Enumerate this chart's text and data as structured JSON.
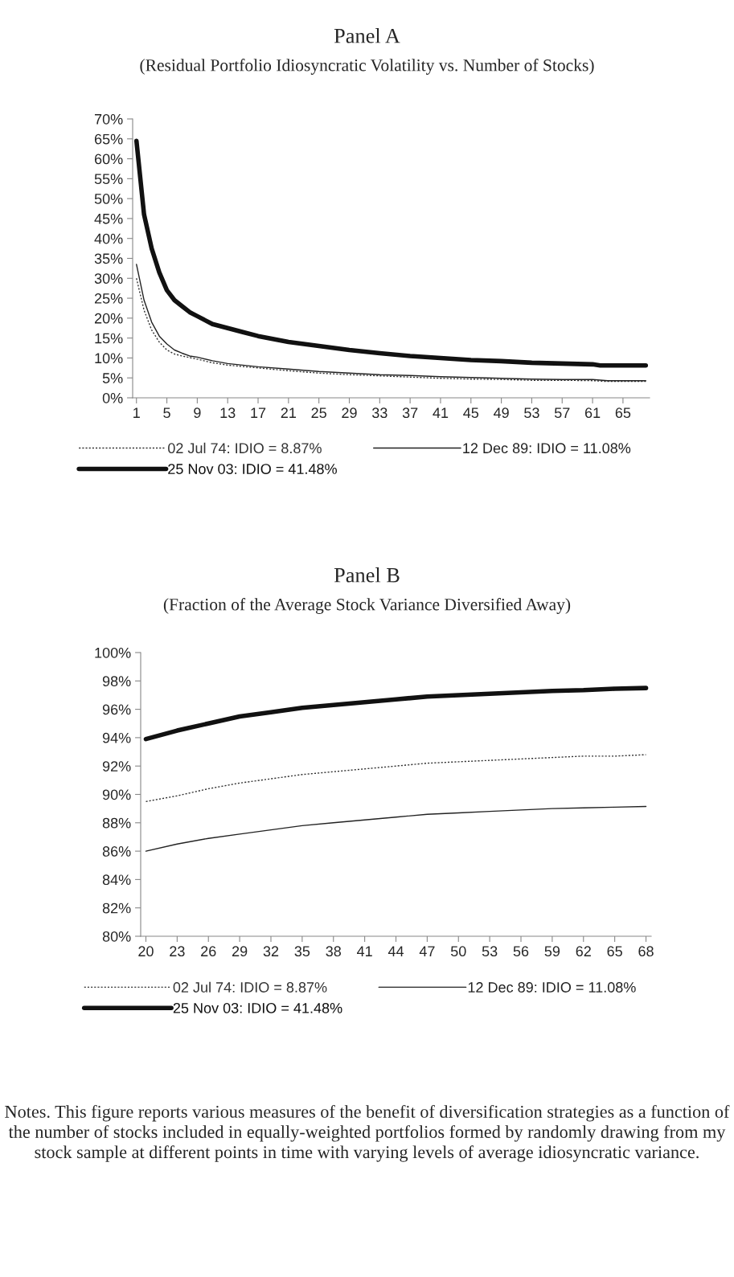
{
  "chart_data": [
    {
      "type": "line",
      "title": "Panel A",
      "subtitle": "(Residual Portfolio Idiosyncratic Volatility vs. Number of Stocks)",
      "xlim": [
        0.5,
        68.5
      ],
      "xticks": [
        1,
        5,
        9,
        13,
        17,
        21,
        25,
        29,
        33,
        37,
        41,
        45,
        49,
        53,
        57,
        61,
        65
      ],
      "ylim": [
        0,
        70
      ],
      "yticks": [
        {
          "value": 0,
          "label": "0%"
        },
        {
          "value": 5,
          "label": "5%"
        },
        {
          "value": 10,
          "label": "10%"
        },
        {
          "value": 15,
          "label": "15%"
        },
        {
          "value": 20,
          "label": "20%"
        },
        {
          "value": 25,
          "label": "25%"
        },
        {
          "value": 30,
          "label": "30%"
        },
        {
          "value": 35,
          "label": "35%"
        },
        {
          "value": 40,
          "label": "40%"
        },
        {
          "value": 45,
          "label": "45%"
        },
        {
          "value": 50,
          "label": "50%"
        },
        {
          "value": 55,
          "label": "55%"
        },
        {
          "value": 60,
          "label": "60%"
        },
        {
          "value": 65,
          "label": "65%"
        },
        {
          "value": 70,
          "label": "70%"
        }
      ],
      "grid": false,
      "legend": "bottom",
      "series": [
        {
          "name": "02 Jul 74: IDIO = 8.87%",
          "color": "#333333",
          "line_style": "dotted",
          "x": [
            1,
            2,
            3,
            4,
            5,
            6,
            7,
            9,
            11,
            13,
            17,
            21,
            25,
            29,
            33,
            37,
            41,
            45,
            49,
            53,
            57,
            61,
            63,
            68
          ],
          "values": [
            30,
            22,
            17,
            14,
            12,
            11,
            10.5,
            9.7,
            8.8,
            8.2,
            7.5,
            6.8,
            6.2,
            5.8,
            5.5,
            5.2,
            4.9,
            4.7,
            4.6,
            4.4,
            4.4,
            4.3,
            4.1,
            4.1
          ]
        },
        {
          "name": "12 Dec 89: IDIO = 11.08%",
          "color": "#222222",
          "line_style": "solid",
          "x": [
            1,
            2,
            3,
            4,
            5,
            6,
            7,
            8,
            9,
            11,
            13,
            17,
            21,
            25,
            29,
            33,
            37,
            41,
            45,
            49,
            53,
            57,
            61,
            63,
            68
          ],
          "values": [
            33.5,
            24.5,
            19,
            15.5,
            13.5,
            12,
            11.2,
            10.5,
            10.2,
            9.3,
            8.6,
            7.8,
            7.2,
            6.6,
            6.2,
            5.8,
            5.6,
            5.3,
            5.1,
            4.9,
            4.7,
            4.6,
            4.6,
            4.3,
            4.3
          ]
        },
        {
          "name": "25 Nov 03: IDIO = 41.48%",
          "color": "#111111",
          "line_style": "solid",
          "x": [
            1,
            2,
            3,
            4,
            5,
            6,
            7,
            8,
            9,
            10,
            11,
            13,
            15,
            17,
            21,
            25,
            29,
            33,
            37,
            41,
            45,
            49,
            53,
            57,
            61,
            62,
            68
          ],
          "values": [
            64.5,
            46,
            37.5,
            31.5,
            27,
            24.5,
            23,
            21.5,
            20.5,
            19.5,
            18.5,
            17.5,
            16.5,
            15.5,
            14,
            13,
            12,
            11.2,
            10.5,
            10,
            9.5,
            9.2,
            8.8,
            8.6,
            8.4,
            8.1,
            8.1
          ]
        }
      ]
    },
    {
      "type": "line",
      "title": "Panel B",
      "subtitle": "(Fraction of the Average Stock Variance Diversified Away)",
      "xlim": [
        19.5,
        68.5
      ],
      "xticks": [
        20,
        23,
        26,
        29,
        32,
        35,
        38,
        41,
        44,
        47,
        50,
        53,
        56,
        59,
        62,
        65,
        68
      ],
      "ylim": [
        80,
        100
      ],
      "yticks": [
        {
          "value": 80,
          "label": "80%"
        },
        {
          "value": 82,
          "label": "82%"
        },
        {
          "value": 84,
          "label": "84%"
        },
        {
          "value": 86,
          "label": "86%"
        },
        {
          "value": 88,
          "label": "88%"
        },
        {
          "value": 90,
          "label": "90%"
        },
        {
          "value": 92,
          "label": "92%"
        },
        {
          "value": 94,
          "label": "94%"
        },
        {
          "value": 96,
          "label": "96%"
        },
        {
          "value": 98,
          "label": "98%"
        },
        {
          "value": 100,
          "label": "100%"
        }
      ],
      "grid": false,
      "legend": "bottom",
      "annotations": [
        "Notes. This figure reports various measures of the benefit of diversification strategies as a function of the number of stocks included in equally-weighted portfolios formed by randomly drawing from my stock sample at different points in time with varying levels of average idiosyncratic variance."
      ],
      "series": [
        {
          "name": "02 Jul 74: IDIO = 8.87%",
          "color": "#333333",
          "line_style": "dotted",
          "x": [
            20,
            23,
            26,
            29,
            32,
            35,
            38,
            41,
            44,
            47,
            50,
            53,
            56,
            59,
            62,
            65,
            68
          ],
          "values": [
            89.5,
            89.9,
            90.4,
            90.8,
            91.1,
            91.4,
            91.6,
            91.8,
            92.0,
            92.2,
            92.3,
            92.4,
            92.5,
            92.6,
            92.7,
            92.7,
            92.8
          ]
        },
        {
          "name": "12 Dec 89: IDIO = 11.08%",
          "color": "#222222",
          "line_style": "solid",
          "x": [
            20,
            23,
            26,
            29,
            32,
            35,
            38,
            41,
            44,
            47,
            50,
            53,
            56,
            59,
            62,
            65,
            68
          ],
          "values": [
            86.0,
            86.5,
            86.9,
            87.2,
            87.5,
            87.8,
            88.0,
            88.2,
            88.4,
            88.6,
            88.7,
            88.8,
            88.9,
            89.0,
            89.05,
            89.1,
            89.15
          ]
        },
        {
          "name": "25 Nov 03: IDIO = 41.48%",
          "color": "#111111",
          "line_style": "solid",
          "x": [
            20,
            23,
            26,
            29,
            32,
            35,
            38,
            41,
            44,
            47,
            50,
            53,
            56,
            59,
            62,
            65,
            68
          ],
          "values": [
            93.9,
            94.5,
            95.0,
            95.5,
            95.8,
            96.1,
            96.3,
            96.5,
            96.7,
            96.9,
            97.0,
            97.1,
            97.2,
            97.3,
            97.35,
            97.45,
            97.5
          ]
        }
      ]
    }
  ]
}
